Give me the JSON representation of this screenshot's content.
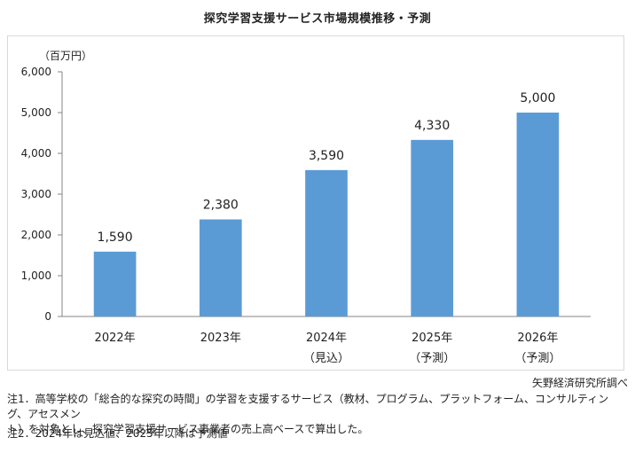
{
  "chart_data": {
    "type": "bar",
    "title": "探究学習支援サービス市場規模推移・予測",
    "unit_label": "（百万円）",
    "categories": [
      "2022年",
      "2023年",
      "2024年",
      "2025年",
      "2026年"
    ],
    "category_sublabels": [
      "",
      "",
      "（見込）",
      "（予測）",
      "（予測）"
    ],
    "values": [
      1590,
      2380,
      3590,
      4330,
      5000
    ],
    "value_labels": [
      "1,590",
      "2,380",
      "3,590",
      "4,330",
      "5,000"
    ],
    "ylim": [
      0,
      6000
    ],
    "yticks": [
      0,
      1000,
      2000,
      3000,
      4000,
      5000,
      6000
    ],
    "ytick_labels": [
      "0",
      "1,000",
      "2,000",
      "3,000",
      "4,000",
      "5,000",
      "6,000"
    ],
    "grid": false,
    "bar_color": "#5b9bd5"
  },
  "source": "矢野経済研究所調べ",
  "notes": {
    "note1_line1": "注1．高等学校の「総合的な探究の時間」の学習を支援するサービス（教材、プログラム、プラットフォーム、コンサルティング、アセスメン",
    "note1_line2": "ト）を対象とし、探究学習支援サービス事業者の売上高ベースで算出した。",
    "note2": "注2．2024年は見込値、2025年以降は予測値"
  }
}
